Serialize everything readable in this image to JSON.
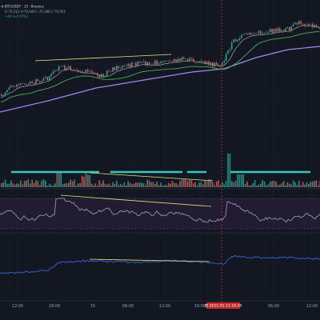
{
  "legend": {
    "symbol_text": "BTC/USDT · 15 · Binance",
    "ohlc_text": "O 70,512  H 70,640  L 70,398  C 70,561",
    "change_text": "+49 (+0.07%)"
  },
  "colors": {
    "background": "#131722",
    "grid": "#1e2230",
    "candle_up": "#26a69a",
    "candle_down": "#ef5350",
    "ma_fast": "#ffffff",
    "ma_mid": "#4caf50",
    "ma_slow": "#9b8cf0",
    "trendline": "#e8e67a",
    "volume_ma": "#33c9b5",
    "rsi_line": "#9aa3c7",
    "rsi_band": "#6a4b86",
    "obv_line": "#3a66d6",
    "crosshair": "#e53935",
    "badge_bg": "#c62828"
  },
  "axis": {
    "time_labels": [
      "12:00",
      "18:00",
      "15",
      "06:00",
      "12:00",
      "18:00",
      "06:00",
      "12:00"
    ],
    "crosshair_label": "四 2025-01-15  19:30"
  },
  "icons": {
    "legend": "legend-dot-icon"
  }
}
